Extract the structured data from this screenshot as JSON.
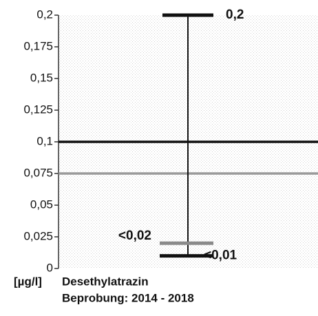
{
  "chart_data": {
    "type": "range",
    "title": "Desethylatrazin",
    "subtitle": "Beprobung: 2014 - 2018",
    "unit_label": "[µg/l]",
    "ylim": [
      0,
      0.2
    ],
    "yticks": [
      0,
      {
        "value": 0.025,
        "label": "0,025"
      },
      {
        "value": 0.05,
        "label": "0,05"
      },
      {
        "value": 0.075,
        "label": "0,075"
      },
      {
        "value": 0.1,
        "label": "0,1"
      },
      {
        "value": 0.125,
        "label": "0,125"
      },
      {
        "value": 0.15,
        "label": "0,15"
      },
      {
        "value": 0.175,
        "label": "0,175"
      },
      {
        "value": 0.2,
        "label": "0,2"
      }
    ],
    "markers": [
      {
        "value": 0.2,
        "label": "0,2",
        "color": "#111111"
      },
      {
        "value": 0.02,
        "label": "<0,02",
        "color": "#8a8a8a"
      },
      {
        "value": 0.01,
        "label": "<0,01",
        "color": "#111111"
      }
    ],
    "thresholds": [
      {
        "value": 0.1,
        "color": "#111111"
      },
      {
        "value": 0.075,
        "color": "#9a9a9a"
      }
    ],
    "range_color": "#111111"
  }
}
